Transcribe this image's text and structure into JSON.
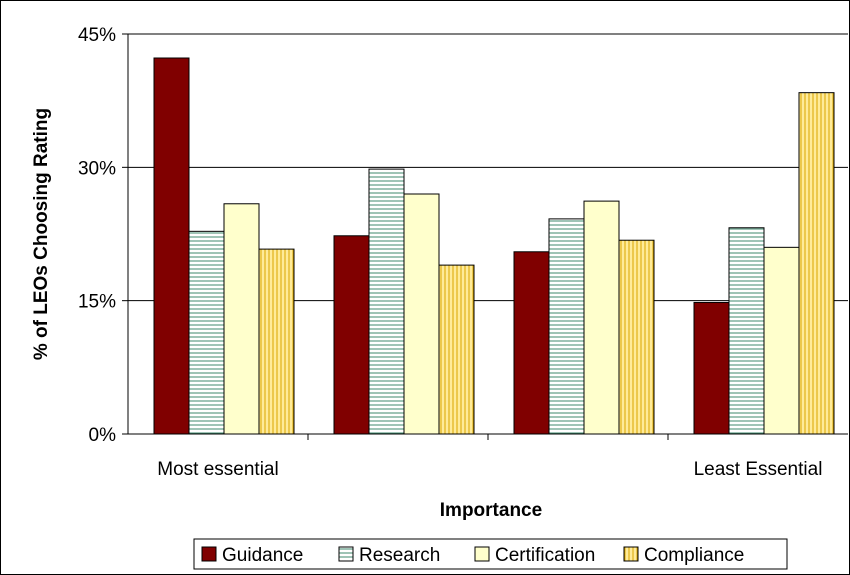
{
  "chart_data": {
    "type": "bar",
    "title": "",
    "xlabel": "Importance",
    "ylabel": "% of LEOs Choosing Rating",
    "ylim": [
      0,
      45
    ],
    "yticks": [
      "0%",
      "15%",
      "30%",
      "45%"
    ],
    "category_labels": [
      "Most essential",
      "",
      "",
      "Least Essential"
    ],
    "categories": [
      "1",
      "2",
      "3",
      "4"
    ],
    "series": [
      {
        "name": "Guidance",
        "values": [
          42.3,
          22.3,
          20.5,
          14.8
        ],
        "color": "#800000",
        "pattern": "solid"
      },
      {
        "name": "Research",
        "values": [
          22.8,
          29.8,
          24.2,
          23.2
        ],
        "color": "#d9f0e6",
        "pattern": "horizontal"
      },
      {
        "name": "Certification",
        "values": [
          25.9,
          27.0,
          26.2,
          21.0
        ],
        "color": "#ffffcc",
        "pattern": "solid"
      },
      {
        "name": "Compliance",
        "values": [
          20.8,
          19.0,
          21.8,
          38.4
        ],
        "color": "#ffe680",
        "pattern": "vertical"
      }
    ],
    "grid": true,
    "legend_position": "bottom"
  }
}
